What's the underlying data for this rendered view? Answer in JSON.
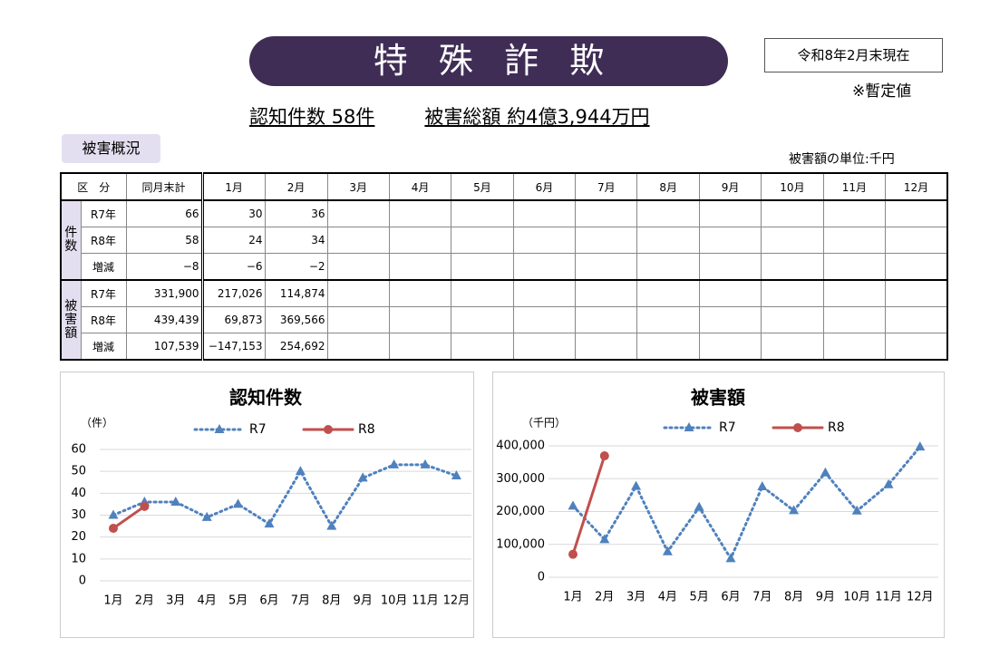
{
  "header": {
    "title": "特殊詐欺",
    "as_of": "令和8年2月末現在",
    "note": "※暫定値",
    "summary_count": "認知件数 58件",
    "summary_amount": "被害総額 約4億3,944万円"
  },
  "section": {
    "label": "被害概況",
    "unit_note": "被害額の単位:千円"
  },
  "table": {
    "header": [
      "区　分",
      "同月末計",
      "1月",
      "2月",
      "3月",
      "4月",
      "5月",
      "6月",
      "7月",
      "8月",
      "9月",
      "10月",
      "11月",
      "12月"
    ],
    "groups": [
      {
        "label": "件数",
        "rows": [
          {
            "label": "R7年",
            "cells": [
              "66",
              "30",
              "36"
            ]
          },
          {
            "label": "R8年",
            "cells": [
              "58",
              "24",
              "34"
            ]
          },
          {
            "label": "増減",
            "cells": [
              "−8",
              "−6",
              "−2"
            ]
          }
        ]
      },
      {
        "label": "被害額",
        "rows": [
          {
            "label": "R7年",
            "cells": [
              "331,900",
              "217,026",
              "114,874"
            ]
          },
          {
            "label": "R8年",
            "cells": [
              "439,439",
              "69,873",
              "369,566"
            ]
          },
          {
            "label": "増減",
            "cells": [
              "107,539",
              "−147,153",
              "254,692"
            ]
          }
        ]
      }
    ]
  },
  "chart_data": [
    {
      "type": "line",
      "title": "認知件数",
      "y_unit": "（件）",
      "categories": [
        "1月",
        "2月",
        "3月",
        "4月",
        "5月",
        "6月",
        "7月",
        "8月",
        "9月",
        "10月",
        "11月",
        "12月"
      ],
      "series": [
        {
          "name": "R7",
          "color": "#4f81bd",
          "style": "dotted",
          "marker": "triangle",
          "values": [
            30,
            36,
            36,
            29,
            35,
            26,
            50,
            25,
            47,
            53,
            53,
            48
          ]
        },
        {
          "name": "R8",
          "color": "#c0504d",
          "style": "solid",
          "marker": "circle",
          "values": [
            24,
            34,
            null,
            null,
            null,
            null,
            null,
            null,
            null,
            null,
            null,
            null
          ]
        }
      ],
      "ylim": [
        0,
        60
      ],
      "yticks": [
        0,
        10,
        20,
        30,
        40,
        50,
        60
      ],
      "grid": true
    },
    {
      "type": "line",
      "title": "被害額",
      "y_unit": "（千円）",
      "categories": [
        "1月",
        "2月",
        "3月",
        "4月",
        "5月",
        "6月",
        "7月",
        "8月",
        "9月",
        "10月",
        "11月",
        "12月"
      ],
      "series": [
        {
          "name": "R7",
          "color": "#4f81bd",
          "style": "dotted",
          "marker": "triangle",
          "values": [
            217026,
            114874,
            277000,
            78000,
            213000,
            57000,
            276000,
            203000,
            318000,
            202000,
            282000,
            397000
          ]
        },
        {
          "name": "R8",
          "color": "#c0504d",
          "style": "solid",
          "marker": "circle",
          "values": [
            69873,
            369566,
            null,
            null,
            null,
            null,
            null,
            null,
            null,
            null,
            null,
            null
          ]
        }
      ],
      "ylim": [
        0,
        400000
      ],
      "yticks": [
        0,
        {
          "value": 100000,
          "label": "100,000"
        },
        {
          "value": 200000,
          "label": "200,000"
        },
        {
          "value": 300000,
          "label": "300,000"
        },
        {
          "value": 400000,
          "label": "400,000"
        }
      ],
      "grid": true
    }
  ]
}
